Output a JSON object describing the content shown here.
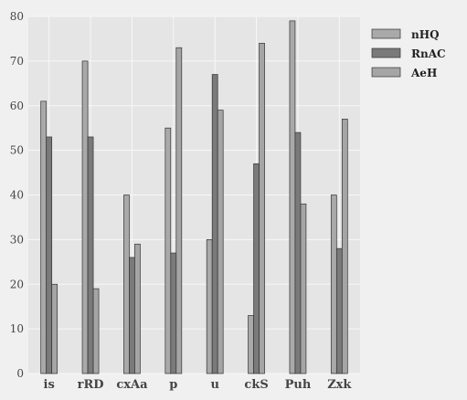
{
  "chart_data": {
    "type": "bar",
    "title": "",
    "xlabel": "",
    "ylabel": "",
    "categories": [
      "is",
      "rRD",
      "cxAa",
      "p",
      "u",
      "ckS",
      "Puh",
      "Zxk"
    ],
    "ylim": [
      0,
      80
    ],
    "yticks": [
      0,
      10,
      20,
      30,
      40,
      50,
      60,
      70,
      80
    ],
    "grid": true,
    "legend_position": "top-right outside",
    "series": [
      {
        "name": "nHQ",
        "color": "#a9a9a9",
        "values": [
          61,
          70,
          40,
          55,
          30,
          13,
          79,
          40
        ]
      },
      {
        "name": "RnAC",
        "color": "#7a7a7a",
        "values": [
          53,
          53,
          26,
          27,
          67,
          47,
          54,
          28
        ]
      },
      {
        "name": "AeH",
        "color": "#a5a5a5",
        "values": [
          20,
          19,
          29,
          73,
          59,
          74,
          38,
          57
        ]
      }
    ]
  }
}
